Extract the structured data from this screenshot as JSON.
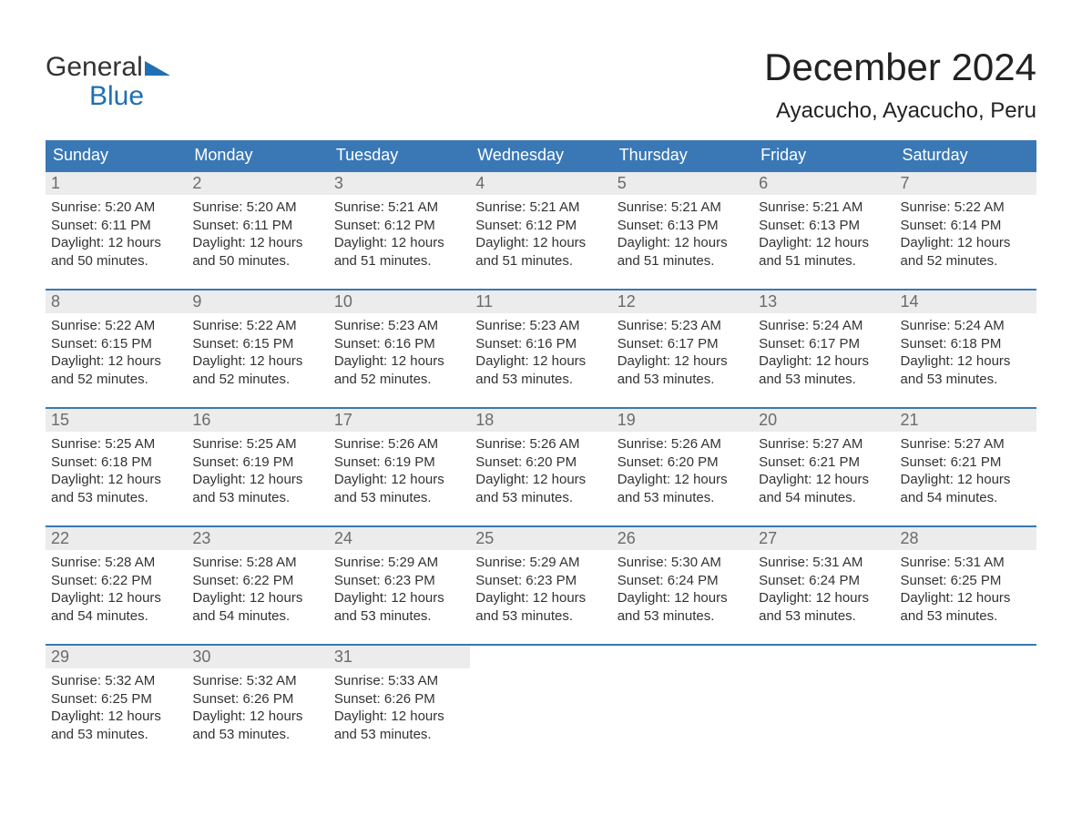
{
  "colors": {
    "header_bg": "#3a78b5",
    "header_text": "#ffffff",
    "logo_gray": "#333333",
    "logo_blue": "#1f6fb2",
    "daynum_bg": "#ececec",
    "daynum_text": "#6b6b6b",
    "body_text": "#333333",
    "week_border": "#3a78b5",
    "page_bg": "#ffffff"
  },
  "logo": {
    "line1": "General",
    "line2": "Blue"
  },
  "title": "December 2024",
  "location": "Ayacucho, Ayacucho, Peru",
  "day_names": [
    "Sunday",
    "Monday",
    "Tuesday",
    "Wednesday",
    "Thursday",
    "Friday",
    "Saturday"
  ],
  "weeks": [
    [
      {
        "n": "1",
        "sunrise": "Sunrise: 5:20 AM",
        "sunset": "Sunset: 6:11 PM",
        "dl1": "Daylight: 12 hours",
        "dl2": "and 50 minutes."
      },
      {
        "n": "2",
        "sunrise": "Sunrise: 5:20 AM",
        "sunset": "Sunset: 6:11 PM",
        "dl1": "Daylight: 12 hours",
        "dl2": "and 50 minutes."
      },
      {
        "n": "3",
        "sunrise": "Sunrise: 5:21 AM",
        "sunset": "Sunset: 6:12 PM",
        "dl1": "Daylight: 12 hours",
        "dl2": "and 51 minutes."
      },
      {
        "n": "4",
        "sunrise": "Sunrise: 5:21 AM",
        "sunset": "Sunset: 6:12 PM",
        "dl1": "Daylight: 12 hours",
        "dl2": "and 51 minutes."
      },
      {
        "n": "5",
        "sunrise": "Sunrise: 5:21 AM",
        "sunset": "Sunset: 6:13 PM",
        "dl1": "Daylight: 12 hours",
        "dl2": "and 51 minutes."
      },
      {
        "n": "6",
        "sunrise": "Sunrise: 5:21 AM",
        "sunset": "Sunset: 6:13 PM",
        "dl1": "Daylight: 12 hours",
        "dl2": "and 51 minutes."
      },
      {
        "n": "7",
        "sunrise": "Sunrise: 5:22 AM",
        "sunset": "Sunset: 6:14 PM",
        "dl1": "Daylight: 12 hours",
        "dl2": "and 52 minutes."
      }
    ],
    [
      {
        "n": "8",
        "sunrise": "Sunrise: 5:22 AM",
        "sunset": "Sunset: 6:15 PM",
        "dl1": "Daylight: 12 hours",
        "dl2": "and 52 minutes."
      },
      {
        "n": "9",
        "sunrise": "Sunrise: 5:22 AM",
        "sunset": "Sunset: 6:15 PM",
        "dl1": "Daylight: 12 hours",
        "dl2": "and 52 minutes."
      },
      {
        "n": "10",
        "sunrise": "Sunrise: 5:23 AM",
        "sunset": "Sunset: 6:16 PM",
        "dl1": "Daylight: 12 hours",
        "dl2": "and 52 minutes."
      },
      {
        "n": "11",
        "sunrise": "Sunrise: 5:23 AM",
        "sunset": "Sunset: 6:16 PM",
        "dl1": "Daylight: 12 hours",
        "dl2": "and 53 minutes."
      },
      {
        "n": "12",
        "sunrise": "Sunrise: 5:23 AM",
        "sunset": "Sunset: 6:17 PM",
        "dl1": "Daylight: 12 hours",
        "dl2": "and 53 minutes."
      },
      {
        "n": "13",
        "sunrise": "Sunrise: 5:24 AM",
        "sunset": "Sunset: 6:17 PM",
        "dl1": "Daylight: 12 hours",
        "dl2": "and 53 minutes."
      },
      {
        "n": "14",
        "sunrise": "Sunrise: 5:24 AM",
        "sunset": "Sunset: 6:18 PM",
        "dl1": "Daylight: 12 hours",
        "dl2": "and 53 minutes."
      }
    ],
    [
      {
        "n": "15",
        "sunrise": "Sunrise: 5:25 AM",
        "sunset": "Sunset: 6:18 PM",
        "dl1": "Daylight: 12 hours",
        "dl2": "and 53 minutes."
      },
      {
        "n": "16",
        "sunrise": "Sunrise: 5:25 AM",
        "sunset": "Sunset: 6:19 PM",
        "dl1": "Daylight: 12 hours",
        "dl2": "and 53 minutes."
      },
      {
        "n": "17",
        "sunrise": "Sunrise: 5:26 AM",
        "sunset": "Sunset: 6:19 PM",
        "dl1": "Daylight: 12 hours",
        "dl2": "and 53 minutes."
      },
      {
        "n": "18",
        "sunrise": "Sunrise: 5:26 AM",
        "sunset": "Sunset: 6:20 PM",
        "dl1": "Daylight: 12 hours",
        "dl2": "and 53 minutes."
      },
      {
        "n": "19",
        "sunrise": "Sunrise: 5:26 AM",
        "sunset": "Sunset: 6:20 PM",
        "dl1": "Daylight: 12 hours",
        "dl2": "and 53 minutes."
      },
      {
        "n": "20",
        "sunrise": "Sunrise: 5:27 AM",
        "sunset": "Sunset: 6:21 PM",
        "dl1": "Daylight: 12 hours",
        "dl2": "and 54 minutes."
      },
      {
        "n": "21",
        "sunrise": "Sunrise: 5:27 AM",
        "sunset": "Sunset: 6:21 PM",
        "dl1": "Daylight: 12 hours",
        "dl2": "and 54 minutes."
      }
    ],
    [
      {
        "n": "22",
        "sunrise": "Sunrise: 5:28 AM",
        "sunset": "Sunset: 6:22 PM",
        "dl1": "Daylight: 12 hours",
        "dl2": "and 54 minutes."
      },
      {
        "n": "23",
        "sunrise": "Sunrise: 5:28 AM",
        "sunset": "Sunset: 6:22 PM",
        "dl1": "Daylight: 12 hours",
        "dl2": "and 54 minutes."
      },
      {
        "n": "24",
        "sunrise": "Sunrise: 5:29 AM",
        "sunset": "Sunset: 6:23 PM",
        "dl1": "Daylight: 12 hours",
        "dl2": "and 53 minutes."
      },
      {
        "n": "25",
        "sunrise": "Sunrise: 5:29 AM",
        "sunset": "Sunset: 6:23 PM",
        "dl1": "Daylight: 12 hours",
        "dl2": "and 53 minutes."
      },
      {
        "n": "26",
        "sunrise": "Sunrise: 5:30 AM",
        "sunset": "Sunset: 6:24 PM",
        "dl1": "Daylight: 12 hours",
        "dl2": "and 53 minutes."
      },
      {
        "n": "27",
        "sunrise": "Sunrise: 5:31 AM",
        "sunset": "Sunset: 6:24 PM",
        "dl1": "Daylight: 12 hours",
        "dl2": "and 53 minutes."
      },
      {
        "n": "28",
        "sunrise": "Sunrise: 5:31 AM",
        "sunset": "Sunset: 6:25 PM",
        "dl1": "Daylight: 12 hours",
        "dl2": "and 53 minutes."
      }
    ],
    [
      {
        "n": "29",
        "sunrise": "Sunrise: 5:32 AM",
        "sunset": "Sunset: 6:25 PM",
        "dl1": "Daylight: 12 hours",
        "dl2": "and 53 minutes."
      },
      {
        "n": "30",
        "sunrise": "Sunrise: 5:32 AM",
        "sunset": "Sunset: 6:26 PM",
        "dl1": "Daylight: 12 hours",
        "dl2": "and 53 minutes."
      },
      {
        "n": "31",
        "sunrise": "Sunrise: 5:33 AM",
        "sunset": "Sunset: 6:26 PM",
        "dl1": "Daylight: 12 hours",
        "dl2": "and 53 minutes."
      },
      {
        "empty": true
      },
      {
        "empty": true
      },
      {
        "empty": true
      },
      {
        "empty": true
      }
    ]
  ]
}
